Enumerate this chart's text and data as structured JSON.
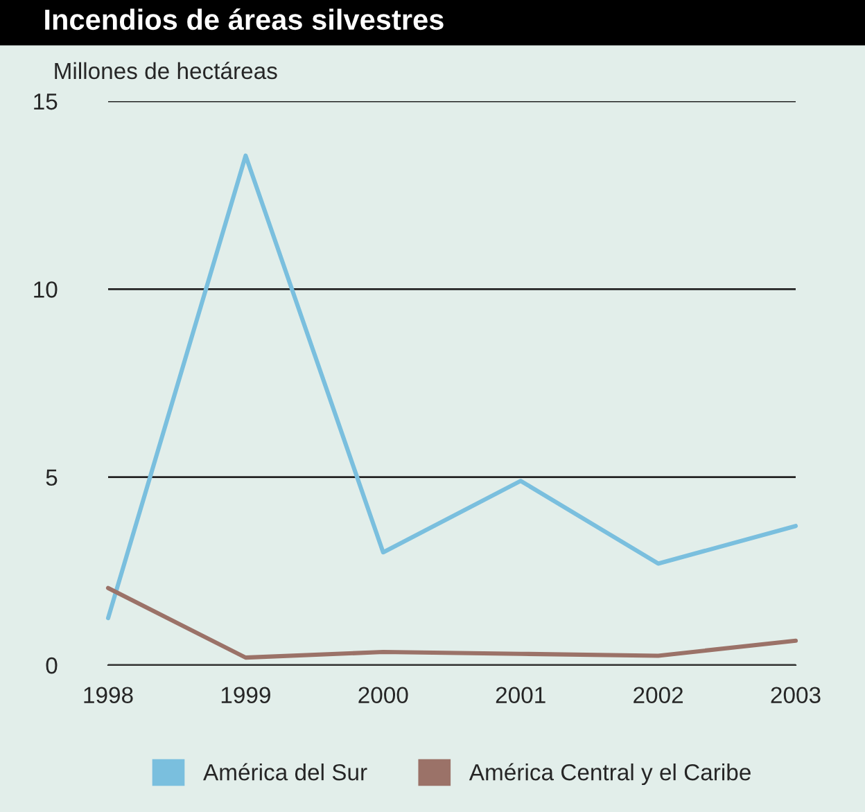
{
  "chart_data": {
    "type": "line",
    "title": "Incendios de áreas silvestres",
    "ylabel": "Millones de hectáreas",
    "categories": [
      "1998",
      "1999",
      "2000",
      "2001",
      "2002",
      "2003"
    ],
    "series": [
      {
        "name": "América del Sur",
        "color": "#7abfde",
        "values": [
          1.25,
          13.55,
          3.0,
          4.9,
          2.7,
          3.7
        ]
      },
      {
        "name": "América Central y el Caribe",
        "color": "#9b7268",
        "values": [
          2.05,
          0.2,
          0.35,
          0.3,
          0.25,
          0.65
        ]
      }
    ],
    "ylim": [
      0,
      15
    ],
    "yticks": [
      0,
      5,
      10,
      15
    ],
    "grid": "y",
    "legend": "bottom",
    "marker": "none",
    "line_style": "solid"
  }
}
